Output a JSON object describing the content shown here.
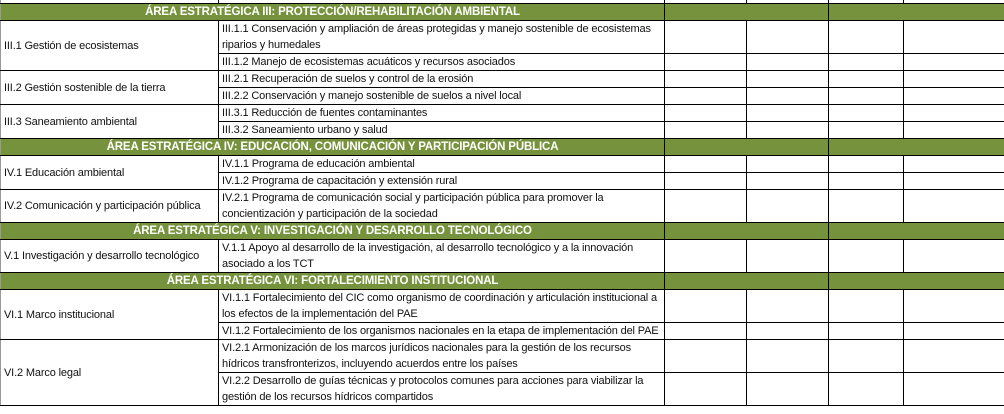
{
  "header_color": "#76923C",
  "sections": [
    {
      "title": "ÁREA ESTRATÉGICA III: PROTECCIÓN/REHABILITACIÓN AMBIENTAL",
      "groups": [
        {
          "label": "III.1 Gestión de ecosistemas",
          "items": [
            "III.1.1 Conservación y ampliación de áreas protegidas y manejo sostenible de ecosistemas riparios y humedales",
            "III.1.2 Manejo de ecosistemas acuáticos y recursos asociados"
          ]
        },
        {
          "label": "III.2 Gestión sostenible de la tierra",
          "items": [
            "III.2.1 Recuperación de suelos y control de la erosión",
            "III.2.2 Conservación y manejo sostenible de suelos a nivel local"
          ]
        },
        {
          "label": "III.3 Saneamiento ambiental",
          "items": [
            "III.3.1 Reducción de fuentes contaminantes",
            "III.3.2 Saneamiento urbano y salud"
          ]
        }
      ]
    },
    {
      "title": "ÁREA ESTRATÉGICA IV: EDUCACIÓN, COMUNICACIÓN Y PARTICIPACIÓN PÚBLICA",
      "groups": [
        {
          "label": "IV.1 Educación ambiental",
          "items": [
            "IV.1.1 Programa de educación ambiental",
            "IV.1.2 Programa de capacitación y extensión rural"
          ]
        },
        {
          "label": "IV.2 Comunicación y participación pública",
          "items": [
            "IV.2.1 Programa de comunicación social y participación pública para promover la concientización y participación de la sociedad"
          ]
        }
      ]
    },
    {
      "title": "ÁREA ESTRATÉGICA V: INVESTIGACIÓN Y DESARROLLO TECNOLÓGICO",
      "groups": [
        {
          "label": "V.1 Investigación y desarrollo tecnológico",
          "items": [
            "V.1.1 Apoyo al desarrollo de la investigación, al desarrollo tecnológico y a la innovación asociado a los TCT"
          ]
        }
      ]
    },
    {
      "title": "ÁREA ESTRATÉGICA VI: FORTALECIMIENTO INSTITUCIONAL",
      "groups": [
        {
          "label": "VI.1 Marco institucional",
          "items": [
            "VI.1.1 Fortalecimiento del CIC como organismo de coordinación y articulación institucional a los efectos de la implementación del PAE",
            "VI.1.2 Fortalecimiento de los organismos nacionales en la etapa de implementación del PAE"
          ]
        },
        {
          "label": "VI.2 Marco legal",
          "items": [
            "VI.2.1 Armonización de los marcos jurídicos nacionales para la gestión de los recursos hídricos transfronterizos, incluyendo acuerdos entre los países",
            "VI.2.2 Desarrollo de guías técnicas y protocolos comunes para acciones para viabilizar la gestión de los recursos hídricos compartidos"
          ]
        }
      ]
    }
  ]
}
